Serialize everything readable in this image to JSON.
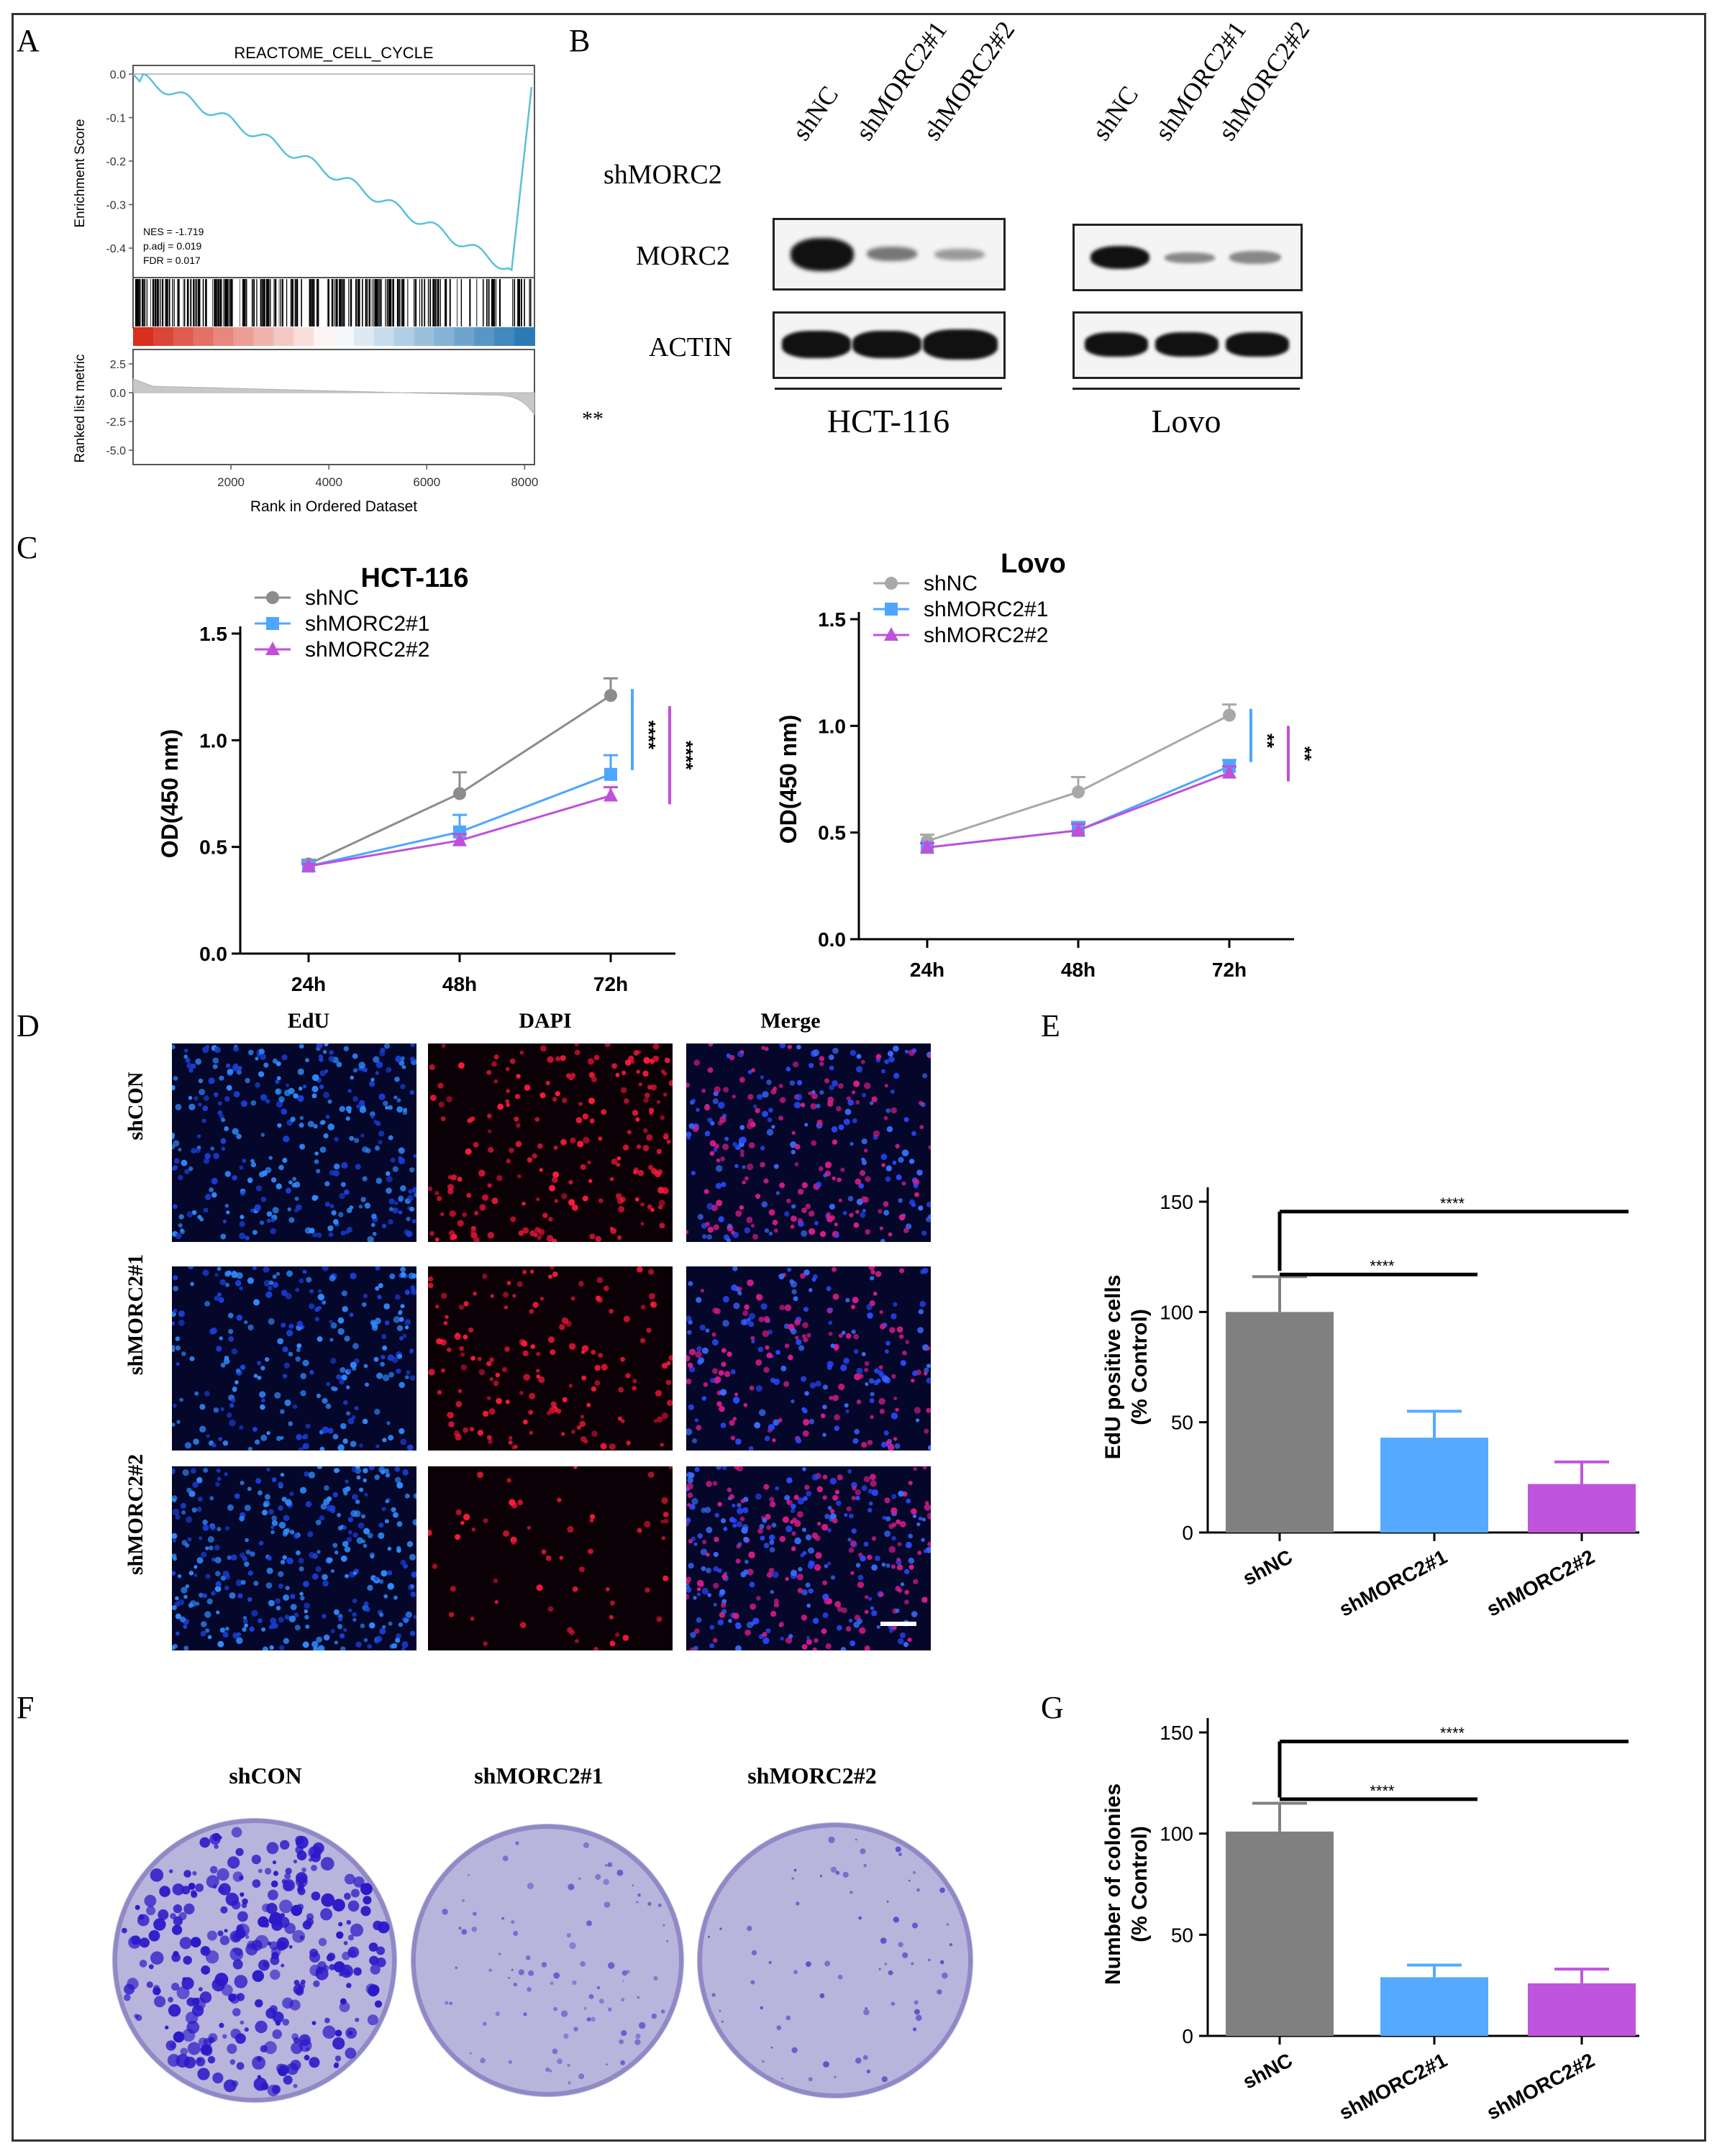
{
  "panels": {
    "a": "A",
    "b": "B",
    "c": "C",
    "d": "D",
    "e": "E",
    "f": "F",
    "g": "G"
  },
  "gsea": {
    "title": "REACTOME_CELL_CYCLE",
    "es_label": "Enrichment Score",
    "es_ticks": [
      "0.0",
      "-0.1",
      "-0.2",
      "-0.3",
      "-0.4"
    ],
    "stats": [
      "NES = -1.719",
      "p.adj = 0.019",
      "FDR = 0.017"
    ],
    "rank_label": "Ranked list metric",
    "rank_ticks": [
      "2.5",
      "0.0",
      "-2.5",
      "-5.0"
    ],
    "x_ticks": [
      "2000",
      "4000",
      "6000",
      "8000"
    ],
    "x_label": "Rank in Ordered Dataset",
    "colors": {
      "curve": "#5bc0d8",
      "red": "#d7301f",
      "blue": "#2c7bb6"
    }
  },
  "western": {
    "row_header": "shMORC2",
    "lanes": [
      "shNC",
      "shMORC2#1",
      "shMORC2#2"
    ],
    "proteins": [
      "MORC2",
      "ACTIN"
    ],
    "cell_lines": [
      "HCT-116",
      "Lovo"
    ],
    "note": "**"
  },
  "cck8": {
    "charts": [
      {
        "title": "HCT-116",
        "ylabel": "OD(450 nm)",
        "x": [
          "24h",
          "48h",
          "72h"
        ],
        "y_ticks": [
          "0.0",
          "0.5",
          "1.0",
          "1.5"
        ],
        "ylim": [
          0,
          1.5
        ],
        "series": [
          {
            "name": "shNC",
            "color": "#8c8c8c",
            "marker": "circle",
            "values": [
              0.42,
              0.75,
              1.21
            ],
            "err": [
              0.02,
              0.1,
              0.08
            ]
          },
          {
            "name": "shMORC2#1",
            "color": "#4da6ff",
            "marker": "square",
            "values": [
              0.41,
              0.57,
              0.84
            ],
            "err": [
              0.02,
              0.08,
              0.09
            ]
          },
          {
            "name": "shMORC2#2",
            "color": "#c050d8",
            "marker": "triangle",
            "values": [
              0.41,
              0.53,
              0.74
            ],
            "err": [
              0.01,
              0.03,
              0.04
            ]
          }
        ],
        "sig": [
          "****",
          "****"
        ]
      },
      {
        "title": "Lovo",
        "ylabel": "OD(450 nm)",
        "x": [
          "24h",
          "48h",
          "72h"
        ],
        "y_ticks": [
          "0.0",
          "0.5",
          "1.0",
          "1.5"
        ],
        "ylim": [
          0,
          1.5
        ],
        "series": [
          {
            "name": "shNC",
            "color": "#a8a8a8",
            "marker": "circle",
            "values": [
              0.46,
              0.69,
              1.05
            ],
            "err": [
              0.03,
              0.07,
              0.05
            ]
          },
          {
            "name": "shMORC2#1",
            "color": "#4da6ff",
            "marker": "square",
            "values": [
              0.43,
              0.51,
              0.81
            ],
            "err": [
              0.02,
              0.04,
              0.03
            ]
          },
          {
            "name": "shMORC2#2",
            "color": "#c050d8",
            "marker": "triangle",
            "values": [
              0.43,
              0.51,
              0.78
            ],
            "err": [
              0.02,
              0.03,
              0.03
            ]
          }
        ],
        "sig": [
          "**",
          "**"
        ]
      }
    ]
  },
  "edu_images": {
    "columns": [
      "EdU",
      "DAPI",
      "Merge"
    ],
    "rows": [
      "shCON",
      "shMORC2#1",
      "shMORC2#2"
    ]
  },
  "edu_bar": {
    "type": "bar",
    "ylabel_1": "EdU positive cells",
    "ylabel_2": "(% Control)",
    "categories": [
      "shNC",
      "shMORC2#1",
      "shMORC2#2"
    ],
    "values": [
      100,
      43,
      22
    ],
    "err": [
      16,
      12,
      10
    ],
    "colors": [
      "#808080",
      "#55aaff",
      "#c055dd"
    ],
    "y_ticks": [
      "0",
      "50",
      "100",
      "150"
    ],
    "ylim": [
      0,
      150
    ],
    "sig": [
      "****",
      "****"
    ]
  },
  "colony_images": {
    "labels": [
      "shCON",
      "shMORC2#1",
      "shMORC2#2"
    ]
  },
  "colony_bar": {
    "type": "bar",
    "ylabel_1": "Number of colonies",
    "ylabel_2": "(% Control)",
    "categories": [
      "shNC",
      "shMORC2#1",
      "shMORC2#2"
    ],
    "values": [
      101,
      29,
      26
    ],
    "err": [
      14,
      6,
      7
    ],
    "colors": [
      "#808080",
      "#55aaff",
      "#c055dd"
    ],
    "y_ticks": [
      "0",
      "50",
      "100",
      "150"
    ],
    "ylim": [
      0,
      150
    ],
    "sig": [
      "****",
      "****"
    ]
  }
}
